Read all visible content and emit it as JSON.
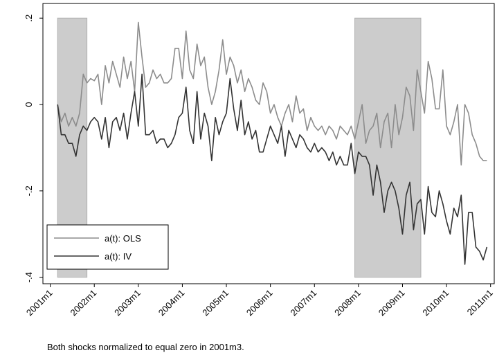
{
  "chart_data": {
    "type": "line",
    "footnote": "Both shocks normalized to equal zero in 2001m3.",
    "x": [
      "2001m3",
      "2001m4",
      "2001m5",
      "2001m6",
      "2001m7",
      "2001m8",
      "2001m9",
      "2001m10",
      "2001m11",
      "2001m12",
      "2002m1",
      "2002m2",
      "2002m3",
      "2002m4",
      "2002m5",
      "2002m6",
      "2002m7",
      "2002m8",
      "2002m9",
      "2002m10",
      "2002m11",
      "2002m12",
      "2003m1",
      "2003m2",
      "2003m3",
      "2003m4",
      "2003m5",
      "2003m6",
      "2003m7",
      "2003m8",
      "2003m9",
      "2003m10",
      "2003m11",
      "2003m12",
      "2004m1",
      "2004m2",
      "2004m3",
      "2004m4",
      "2004m5",
      "2004m6",
      "2004m7",
      "2004m8",
      "2004m9",
      "2004m10",
      "2004m11",
      "2004m12",
      "2005m1",
      "2005m2",
      "2005m3",
      "2005m4",
      "2005m5",
      "2005m6",
      "2005m7",
      "2005m8",
      "2005m9",
      "2005m10",
      "2005m11",
      "2005m12",
      "2006m1",
      "2006m2",
      "2006m3",
      "2006m4",
      "2006m5",
      "2006m6",
      "2006m7",
      "2006m8",
      "2006m9",
      "2006m10",
      "2006m11",
      "2006m12",
      "2007m1",
      "2007m2",
      "2007m3",
      "2007m4",
      "2007m5",
      "2007m6",
      "2007m7",
      "2007m8",
      "2007m9",
      "2007m10",
      "2007m11",
      "2007m12",
      "2008m1",
      "2008m2",
      "2008m3",
      "2008m4",
      "2008m5",
      "2008m6",
      "2008m7",
      "2008m8",
      "2008m9",
      "2008m10",
      "2008m11",
      "2008m12",
      "2009m1",
      "2009m2",
      "2009m3",
      "2009m4",
      "2009m5",
      "2009m6",
      "2009m7",
      "2009m8",
      "2009m9",
      "2009m10",
      "2009m11",
      "2009m12",
      "2010m1",
      "2010m2",
      "2010m3",
      "2010m4",
      "2010m5",
      "2010m6",
      "2010m7",
      "2010m8",
      "2010m9",
      "2010m10",
      "2010m11",
      "2010m12"
    ],
    "series": [
      {
        "name": "a(t): OLS",
        "color": "#8c8c8c",
        "values": [
          0,
          -0.04,
          -0.02,
          -0.05,
          -0.03,
          -0.05,
          -0.02,
          0.07,
          0.05,
          0.06,
          0.055,
          0.07,
          0.0,
          0.09,
          0.05,
          0.1,
          0.07,
          0.04,
          0.11,
          0.06,
          0.1,
          0.03,
          0.19,
          0.11,
          0.04,
          0.05,
          0.08,
          0.06,
          0.07,
          0.05,
          0.05,
          0.06,
          0.13,
          0.13,
          0.06,
          0.17,
          0.08,
          0.06,
          0.14,
          0.09,
          0.11,
          0.04,
          0.0,
          0.03,
          0.08,
          0.15,
          0.07,
          0.11,
          0.09,
          0.05,
          0.08,
          0.03,
          0.06,
          0.04,
          0.01,
          0.0,
          0.05,
          0.03,
          -0.02,
          0.0,
          -0.03,
          -0.05,
          -0.02,
          0.0,
          -0.04,
          0.02,
          -0.02,
          -0.01,
          -0.06,
          -0.03,
          -0.05,
          -0.06,
          -0.05,
          -0.07,
          -0.05,
          -0.06,
          -0.08,
          -0.05,
          -0.06,
          -0.07,
          -0.05,
          -0.08,
          -0.04,
          0.0,
          -0.09,
          -0.06,
          -0.05,
          -0.02,
          -0.1,
          -0.04,
          -0.02,
          -0.1,
          0.0,
          -0.07,
          -0.03,
          0.04,
          0.02,
          -0.06,
          0.08,
          0.03,
          -0.02,
          0.1,
          0.06,
          -0.01,
          -0.01,
          0.08,
          -0.05,
          -0.07,
          -0.04,
          0.0,
          -0.14,
          0.0,
          -0.02,
          -0.07,
          -0.09,
          -0.12,
          -0.13,
          -0.13
        ]
      },
      {
        "name": "a(t): IV",
        "color": "#333333",
        "values": [
          0,
          -0.07,
          -0.07,
          -0.09,
          -0.09,
          -0.12,
          -0.07,
          -0.05,
          -0.06,
          -0.04,
          -0.03,
          -0.04,
          -0.08,
          -0.03,
          -0.1,
          -0.04,
          -0.03,
          -0.06,
          -0.02,
          -0.08,
          -0.02,
          0.03,
          -0.05,
          0.07,
          -0.07,
          -0.07,
          -0.06,
          -0.09,
          -0.08,
          -0.08,
          -0.1,
          -0.09,
          -0.07,
          -0.03,
          -0.02,
          0.04,
          -0.06,
          -0.09,
          0.03,
          -0.08,
          -0.02,
          -0.05,
          -0.13,
          -0.03,
          -0.07,
          -0.04,
          -0.02,
          0.06,
          -0.01,
          -0.06,
          0.01,
          -0.07,
          -0.04,
          -0.08,
          -0.06,
          -0.11,
          -0.11,
          -0.08,
          -0.05,
          -0.07,
          -0.09,
          -0.05,
          -0.12,
          -0.06,
          -0.08,
          -0.1,
          -0.07,
          -0.08,
          -0.1,
          -0.11,
          -0.09,
          -0.11,
          -0.1,
          -0.11,
          -0.13,
          -0.11,
          -0.14,
          -0.12,
          -0.14,
          -0.14,
          -0.09,
          -0.16,
          -0.11,
          -0.12,
          -0.12,
          -0.14,
          -0.21,
          -0.14,
          -0.18,
          -0.25,
          -0.2,
          -0.18,
          -0.2,
          -0.24,
          -0.3,
          -0.21,
          -0.18,
          -0.29,
          -0.23,
          -0.22,
          -0.3,
          -0.19,
          -0.25,
          -0.26,
          -0.2,
          -0.23,
          -0.27,
          -0.3,
          -0.24,
          -0.26,
          -0.21,
          -0.37,
          -0.25,
          -0.25,
          -0.33,
          -0.34,
          -0.36,
          -0.33
        ]
      }
    ],
    "shaded_periods": [
      {
        "start": "2001m3",
        "end": "2001m11"
      },
      {
        "start": "2007m12",
        "end": "2009m6"
      }
    ],
    "shade_color": "#cccccc",
    "shade_ylim": [
      -0.4,
      0.2
    ],
    "xlim": [
      "2000m11",
      "2011m2"
    ],
    "xticks": [
      "2001m1",
      "2002m1",
      "2003m1",
      "2004m1",
      "2005m1",
      "2006m1",
      "2007m1",
      "2008m1",
      "2009m1",
      "2010m1",
      "2011m1"
    ],
    "ylim": [
      -0.415,
      0.234
    ],
    "yticks": [
      {
        "value": 0.2,
        "label": ".2"
      },
      0,
      {
        "value": -0.2,
        "label": "-.2"
      },
      {
        "value": -0.4,
        "label": "-.4"
      }
    ],
    "legend": "lower left"
  }
}
